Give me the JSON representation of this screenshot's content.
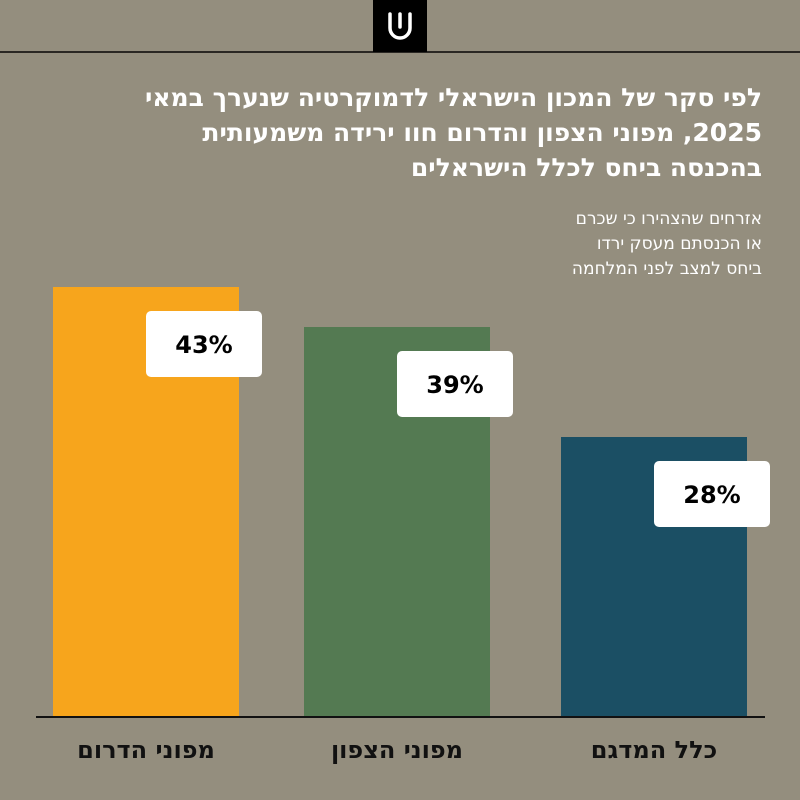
{
  "header": {
    "logo_icon": "logo-icon"
  },
  "title": "לפי סקר של המכון הישראלי לדמוקרטיה שנערך במאי 2025, מפוני הצפון והדרום חוו ירידה משמעותית בהכנסה ביחס לכלל הישראלים",
  "subtitle_lines": [
    "אזרחים שהצהירו כי שכרם",
    "או הכנסתם מעסק ירדו",
    "ביחס למצב לפני המלחמה"
  ],
  "colors": {
    "background": "#948e7e",
    "bar_south": "#f7a51c",
    "bar_north": "#547a52",
    "bar_all": "#1b4f64",
    "label_box": "#ffffff"
  },
  "chart_data": {
    "type": "bar",
    "categories": [
      "מפוני הדרום",
      "מפוני הצפון",
      "כלל המדגם"
    ],
    "values": [
      43,
      39,
      28
    ],
    "data_labels": [
      "43%",
      "39%",
      "28%"
    ],
    "title": "לפי סקר של המכון הישראלי לדמוקרטיה שנערך במאי 2025, מפוני הצפון והדרום חוו ירידה משמעותית בהכנסה ביחס לכלל הישראלים",
    "subtitle": "אזרחים שהצהירו כי שכרם או הכנסתם מעסק ירדו ביחס למצב לפני המלחמה",
    "xlabel": "",
    "ylabel": "",
    "ylim": [
      0,
      43
    ],
    "grid": false,
    "legend": "none"
  }
}
